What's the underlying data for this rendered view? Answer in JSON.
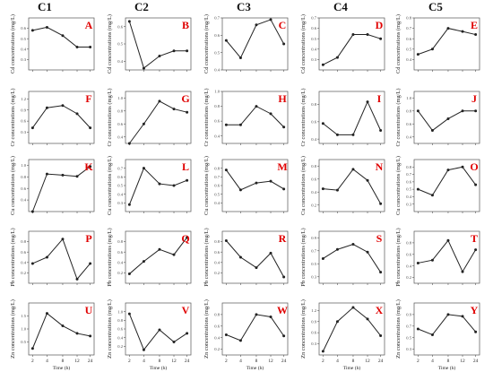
{
  "columns": [
    "C1",
    "C2",
    "C3",
    "C4",
    "C5"
  ],
  "rows": [
    {
      "metal": "Cd",
      "ylabel": "Cd concentrations (mg/L)"
    },
    {
      "metal": "Cr",
      "ylabel": "Cr concentrations (mg/L)"
    },
    {
      "metal": "Cu",
      "ylabel": "Cu concentrations (mg/L)"
    },
    {
      "metal": "Pb",
      "ylabel": "Pb concentrations (mg/L)"
    },
    {
      "metal": "Zn",
      "ylabel": "Zn concentrations (mg/L)"
    }
  ],
  "x_tick_labels": [
    "2",
    "4",
    "8",
    "12",
    "24"
  ],
  "xlabel": "Time (h)",
  "chart_data": [
    {
      "type": "line",
      "panel": "A",
      "column": "C1",
      "row": "Cd",
      "x": [
        "2",
        "4",
        "8",
        "12",
        "24"
      ],
      "values": [
        0.58,
        0.61,
        0.53,
        0.42,
        0.42
      ],
      "ylim": [
        0.2,
        0.7
      ],
      "yticks": [
        "0.3",
        "0.4",
        "0.5",
        "0.6"
      ]
    },
    {
      "type": "line",
      "panel": "B",
      "column": "C2",
      "row": "Cd",
      "x": [
        "2",
        "4",
        "8",
        "12",
        "24"
      ],
      "values": [
        0.63,
        0.36,
        0.43,
        0.46,
        0.46
      ],
      "ylim": [
        0.35,
        0.65
      ],
      "yticks": [
        "0.4",
        "0.5",
        "0.6"
      ]
    },
    {
      "type": "line",
      "panel": "C",
      "column": "C3",
      "row": "Cd",
      "x": [
        "2",
        "4",
        "8",
        "12",
        "24"
      ],
      "values": [
        0.57,
        0.47,
        0.66,
        0.69,
        0.55
      ],
      "ylim": [
        0.4,
        0.7
      ],
      "yticks": [
        "0.4",
        "0.5",
        "0.6",
        "0.7"
      ]
    },
    {
      "type": "line",
      "panel": "D",
      "column": "C4",
      "row": "Cd",
      "x": [
        "2",
        "4",
        "8",
        "12",
        "24"
      ],
      "values": [
        0.25,
        0.32,
        0.54,
        0.54,
        0.5
      ],
      "ylim": [
        0.2,
        0.7
      ],
      "yticks": [
        "0.3",
        "0.4",
        "0.5",
        "0.6",
        "0.7"
      ]
    },
    {
      "type": "line",
      "panel": "E",
      "column": "C5",
      "row": "Cd",
      "x": [
        "2",
        "4",
        "8",
        "12",
        "24"
      ],
      "values": [
        0.45,
        0.5,
        0.7,
        0.67,
        0.64
      ],
      "ylim": [
        0.3,
        0.8
      ],
      "yticks": [
        "0.4",
        "0.5",
        "0.6",
        "0.7",
        "0.8"
      ]
    },
    {
      "type": "line",
      "panel": "F",
      "column": "C1",
      "row": "Cr",
      "x": [
        "2",
        "4",
        "8",
        "12",
        "24"
      ],
      "values": [
        0.42,
        0.96,
        1.02,
        0.8,
        0.42
      ],
      "ylim": [
        0.0,
        1.4
      ],
      "yticks": [
        "0.3",
        "0.6",
        "0.9",
        "1.2"
      ]
    },
    {
      "type": "line",
      "panel": "G",
      "column": "C2",
      "row": "Cr",
      "x": [
        "2",
        "4",
        "8",
        "12",
        "24"
      ],
      "values": [
        0.3,
        0.6,
        0.95,
        0.83,
        0.78
      ],
      "ylim": [
        0.3,
        1.1
      ],
      "yticks": [
        "0.4",
        "0.6",
        "0.8",
        "1.0"
      ]
    },
    {
      "type": "line",
      "panel": "H",
      "column": "C3",
      "row": "Cr",
      "x": [
        "2",
        "4",
        "8",
        "12",
        "24"
      ],
      "values": [
        0.55,
        0.55,
        0.8,
        0.7,
        0.52
      ],
      "ylim": [
        0.3,
        1.0
      ],
      "yticks": [
        "0.4",
        "0.6",
        "0.8",
        "1.0"
      ]
    },
    {
      "type": "line",
      "panel": "I",
      "column": "C4",
      "row": "Cr",
      "x": [
        "2",
        "4",
        "8",
        "12",
        "24"
      ],
      "values": [
        0.58,
        0.45,
        0.45,
        0.83,
        0.5
      ],
      "ylim": [
        0.35,
        0.95
      ],
      "yticks": [
        "0.4",
        "0.6",
        "0.8"
      ]
    },
    {
      "type": "line",
      "panel": "J",
      "column": "C5",
      "row": "Cr",
      "x": [
        "2",
        "4",
        "8",
        "12",
        "24"
      ],
      "values": [
        0.8,
        0.5,
        0.68,
        0.8,
        0.8
      ],
      "ylim": [
        0.3,
        1.1
      ],
      "yticks": [
        "0.4",
        "0.6",
        "0.8",
        "1.0"
      ]
    },
    {
      "type": "line",
      "panel": "K",
      "column": "C1",
      "row": "Cu",
      "x": [
        "2",
        "4",
        "8",
        "12",
        "24"
      ],
      "values": [
        0.2,
        0.85,
        0.83,
        0.81,
        0.98
      ],
      "ylim": [
        0.2,
        1.1
      ],
      "yticks": [
        "0.4",
        "0.6",
        "0.8",
        "1.0"
      ]
    },
    {
      "type": "line",
      "panel": "L",
      "column": "C2",
      "row": "Cu",
      "x": [
        "2",
        "4",
        "8",
        "12",
        "24"
      ],
      "values": [
        0.28,
        0.7,
        0.52,
        0.5,
        0.56
      ],
      "ylim": [
        0.2,
        0.8
      ],
      "yticks": [
        "0.3",
        "0.4",
        "0.5",
        "0.6",
        "0.7"
      ]
    },
    {
      "type": "line",
      "panel": "M",
      "column": "C3",
      "row": "Cu",
      "x": [
        "2",
        "4",
        "8",
        "12",
        "24"
      ],
      "values": [
        0.78,
        0.55,
        0.63,
        0.65,
        0.56
      ],
      "ylim": [
        0.3,
        0.9
      ],
      "yticks": [
        "0.4",
        "0.5",
        "0.6",
        "0.7",
        "0.8"
      ]
    },
    {
      "type": "line",
      "panel": "N",
      "column": "C4",
      "row": "Cu",
      "x": [
        "2",
        "4",
        "8",
        "12",
        "24"
      ],
      "values": [
        0.45,
        0.43,
        0.75,
        0.58,
        0.22
      ],
      "ylim": [
        0.1,
        0.9
      ],
      "yticks": [
        "0.2",
        "0.4",
        "0.6",
        "0.8"
      ]
    },
    {
      "type": "line",
      "panel": "O",
      "column": "C5",
      "row": "Cu",
      "x": [
        "2",
        "4",
        "8",
        "12",
        "24"
      ],
      "values": [
        0.5,
        0.42,
        0.76,
        0.8,
        0.56
      ],
      "ylim": [
        0.2,
        0.9
      ],
      "yticks": [
        "0.3",
        "0.4",
        "0.5",
        "0.6",
        "0.7",
        "0.8"
      ]
    },
    {
      "type": "line",
      "panel": "P",
      "column": "C1",
      "row": "Pb",
      "x": [
        "2",
        "4",
        "8",
        "12",
        "24"
      ],
      "values": [
        0.38,
        0.5,
        0.85,
        0.08,
        0.38
      ],
      "ylim": [
        0.0,
        1.0
      ],
      "yticks": [
        "0.2",
        "0.4",
        "0.6",
        "0.8"
      ]
    },
    {
      "type": "line",
      "panel": "Q",
      "column": "C2",
      "row": "Pb",
      "x": [
        "2",
        "4",
        "8",
        "12",
        "24"
      ],
      "values": [
        0.18,
        0.42,
        0.65,
        0.55,
        0.88
      ],
      "ylim": [
        0.0,
        1.0
      ],
      "yticks": [
        "0.2",
        "0.4",
        "0.6",
        "0.8"
      ]
    },
    {
      "type": "line",
      "panel": "R",
      "column": "C3",
      "row": "Pb",
      "x": [
        "2",
        "4",
        "8",
        "12",
        "24"
      ],
      "values": [
        0.82,
        0.5,
        0.3,
        0.58,
        0.12
      ],
      "ylim": [
        0.0,
        1.0
      ],
      "yticks": [
        "0.2",
        "0.4",
        "0.6",
        "0.8"
      ]
    },
    {
      "type": "line",
      "panel": "S",
      "column": "C4",
      "row": "Pb",
      "x": [
        "2",
        "4",
        "8",
        "12",
        "24"
      ],
      "values": [
        0.58,
        0.72,
        0.8,
        0.68,
        0.37
      ],
      "ylim": [
        0.2,
        1.0
      ],
      "yticks": [
        "0.3",
        "0.5",
        "0.7",
        "0.9"
      ]
    },
    {
      "type": "line",
      "panel": "T",
      "column": "C5",
      "row": "Pb",
      "x": [
        "2",
        "4",
        "8",
        "12",
        "24"
      ],
      "values": [
        0.45,
        0.5,
        0.84,
        0.3,
        0.68
      ],
      "ylim": [
        0.1,
        1.0
      ],
      "yticks": [
        "0.2",
        "0.4",
        "0.6",
        "0.8"
      ]
    },
    {
      "type": "line",
      "panel": "U",
      "column": "C1",
      "row": "Zn",
      "x": [
        "2",
        "4",
        "8",
        "12",
        "24"
      ],
      "values": [
        0.25,
        1.6,
        1.12,
        0.83,
        0.73
      ],
      "ylim": [
        0.0,
        2.0
      ],
      "yticks": [
        "0.5",
        "1.0",
        "1.5"
      ]
    },
    {
      "type": "line",
      "panel": "V",
      "column": "C2",
      "row": "Zn",
      "x": [
        "2",
        "4",
        "8",
        "12",
        "24"
      ],
      "values": [
        0.95,
        0.12,
        0.58,
        0.3,
        0.5
      ],
      "ylim": [
        0.0,
        1.2
      ],
      "yticks": [
        "0.2",
        "0.4",
        "0.6",
        "0.8",
        "1.0"
      ]
    },
    {
      "type": "line",
      "panel": "W",
      "column": "C3",
      "row": "Zn",
      "x": [
        "2",
        "4",
        "8",
        "12",
        "24"
      ],
      "values": [
        0.45,
        0.35,
        0.8,
        0.76,
        0.43
      ],
      "ylim": [
        0.1,
        1.0
      ],
      "yticks": [
        "0.2",
        "0.4",
        "0.6",
        "0.8"
      ]
    },
    {
      "type": "line",
      "panel": "X",
      "column": "C4",
      "row": "Zn",
      "x": [
        "2",
        "4",
        "8",
        "12",
        "24"
      ],
      "values": [
        0.1,
        0.9,
        1.28,
        0.97,
        0.52
      ],
      "ylim": [
        0.0,
        1.4
      ],
      "yticks": [
        "0.3",
        "0.6",
        "0.9",
        "1.2"
      ]
    },
    {
      "type": "line",
      "panel": "Y",
      "column": "C5",
      "row": "Zn",
      "x": [
        "2",
        "4",
        "8",
        "12",
        "24"
      ],
      "values": [
        0.65,
        0.55,
        0.9,
        0.87,
        0.6
      ],
      "ylim": [
        0.2,
        1.1
      ],
      "yticks": [
        "0.3",
        "0.5",
        "0.7",
        "0.9"
      ]
    }
  ]
}
